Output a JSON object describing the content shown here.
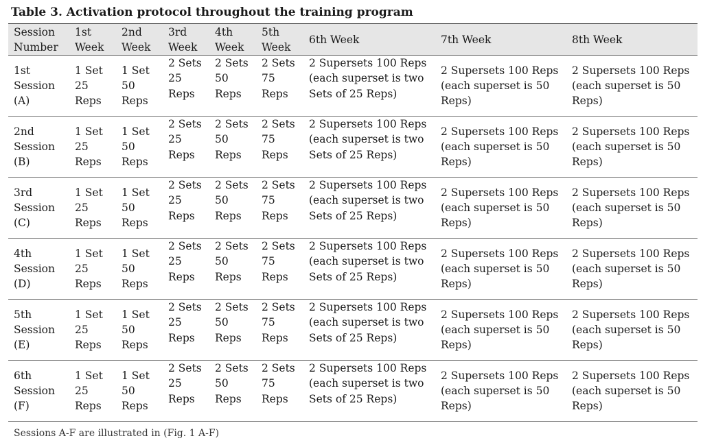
{
  "title": "Table 3. Activation protocol throughout the training program",
  "headers": [
    "Session Number",
    "1st Week",
    "2nd Week",
    "3rd Week",
    "4th Week",
    "5th Week",
    "6th Week",
    "7th Week",
    "8th Week"
  ],
  "rows": [
    [
      "1st Session (A)",
      "1 Set 25 Reps",
      "1 Set 50 Reps",
      "2 Sets 25 Reps",
      "2 Sets 50 Reps",
      "2 Sets 75 Reps",
      "2 Supersets 100 Reps (each superset is two Sets of 25 Reps)",
      "2 Supersets 100 Reps (each superset is 50 Reps)",
      "2 Supersets 100 Reps (each superset is 50 Reps)"
    ],
    [
      "2nd Session (B)",
      "1 Set 25 Reps",
      "1 Set 50 Reps",
      "2 Sets 25 Reps",
      "2 Sets 50 Reps",
      "2 Sets 75 Reps",
      "2 Supersets 100 Reps (each superset is two Sets of 25 Reps)",
      "2 Supersets 100 Reps (each superset is 50 Reps)",
      "2 Supersets 100 Reps (each superset is 50 Reps)"
    ],
    [
      "3rd Session (C)",
      "1 Set 25 Reps",
      "1 Set 50 Reps",
      "2 Sets 25 Reps",
      "2 Sets 50 Reps",
      "2 Sets 75 Reps",
      "2 Supersets 100 Reps (each superset is two Sets of 25 Reps)",
      "2 Supersets 100 Reps (each superset is 50 Reps)",
      "2 Supersets 100 Reps (each superset is 50 Reps)"
    ],
    [
      "4th Session (D)",
      "1 Set 25 Reps",
      "1 Set 50 Reps",
      "2 Sets 25 Reps",
      "2 Sets 50 Reps",
      "2 Sets 75 Reps",
      "2 Supersets 100 Reps (each superset is two Sets of 25 Reps)",
      "2 Supersets 100 Reps (each superset is 50 Reps)",
      "2 Supersets 100 Reps (each superset is 50 Reps)"
    ],
    [
      "5th Session (E)",
      "1 Set 25 Reps",
      "1 Set 50 Reps",
      "2 Sets 25 Reps",
      "2 Sets 50 Reps",
      "2 Sets 75 Reps",
      "2 Supersets 100 Reps (each superset is two Sets of 25 Reps)",
      "2 Supersets 100 Reps (each superset is 50 Reps)",
      "2 Supersets 100 Reps (each superset is 50 Reps)"
    ],
    [
      "6th Session (F)",
      "1 Set 25 Reps",
      "1 Set 50 Reps",
      "2 Sets 25 Reps",
      "2 Sets 50 Reps",
      "2 Sets 75 Reps",
      "2 Supersets 100 Reps (each superset is two Sets of 25 Reps)",
      "2 Supersets 100 Reps (each superset is 50 Reps)",
      "2 Supersets 100 Reps (each superset is 50 Reps)"
    ]
  ],
  "note": "Sessions A-F are illustrated in (Fig. 1 A-F)"
}
